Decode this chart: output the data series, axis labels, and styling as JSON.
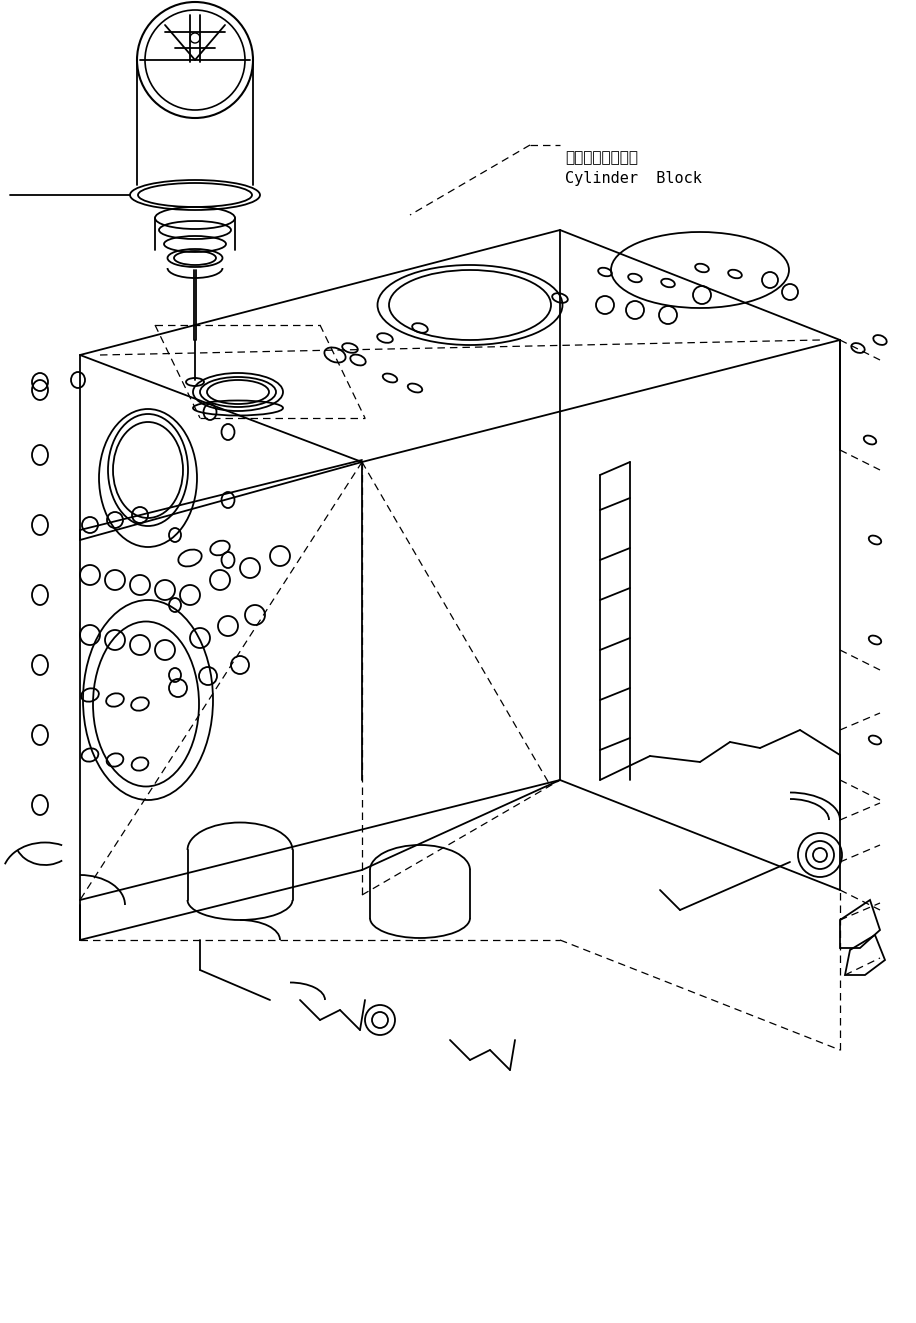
{
  "bg_color": "#ffffff",
  "line_color": "#000000",
  "lw": 1.3,
  "dlw": 0.9,
  "label_japanese": "シリンダブロック",
  "label_english": "Cylinder  Block",
  "fig_width": 9.16,
  "fig_height": 13.23,
  "dpi": 100
}
